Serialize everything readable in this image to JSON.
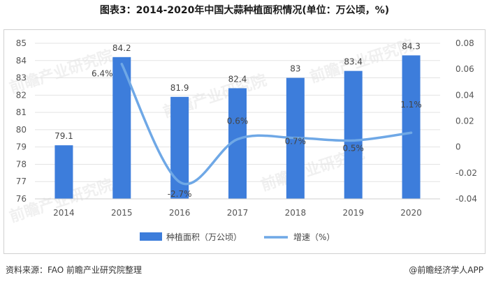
{
  "title": "图表3：2014-2020年中国大蒜种植面积情况(单位：万公顷，%)",
  "source": "资料来源：FAO 前瞻产业研究院整理",
  "brand": "@前瞻经济学人APP",
  "watermark": "前瞻产业研究院",
  "chart_data": {
    "type": "bar",
    "categories": [
      "2014",
      "2015",
      "2016",
      "2017",
      "2018",
      "2019",
      "2020"
    ],
    "series": [
      {
        "name": "种植面积（万公顷）",
        "type": "bar",
        "axis": "left",
        "values": [
          79.1,
          84.2,
          81.9,
          82.4,
          83,
          83.4,
          84.3
        ],
        "labels": [
          "79.1",
          "84.2",
          "81.9",
          "82.4",
          "83",
          "83.4",
          "84.3"
        ],
        "color": "#3d7ddb"
      },
      {
        "name": "增速（%）",
        "type": "line",
        "axis": "right",
        "values": [
          null,
          0.064,
          -0.027,
          0.006,
          0.007,
          0.005,
          0.011
        ],
        "labels": [
          "",
          "6.4%",
          "-2.7%",
          "0.6%",
          "0.7%",
          "0.5%",
          "1.1%"
        ],
        "color": "#6fa8e6"
      }
    ],
    "left_axis": {
      "min": 76,
      "max": 85,
      "ticks": [
        "76",
        "77",
        "78",
        "79",
        "80",
        "81",
        "82",
        "83",
        "84",
        "85"
      ]
    },
    "right_axis": {
      "min": -0.04,
      "max": 0.08,
      "ticks": [
        "-0.04",
        "-0.02",
        "0",
        "0.02",
        "0.04",
        "0.06",
        "0.08"
      ]
    },
    "legend_position": "bottom"
  }
}
